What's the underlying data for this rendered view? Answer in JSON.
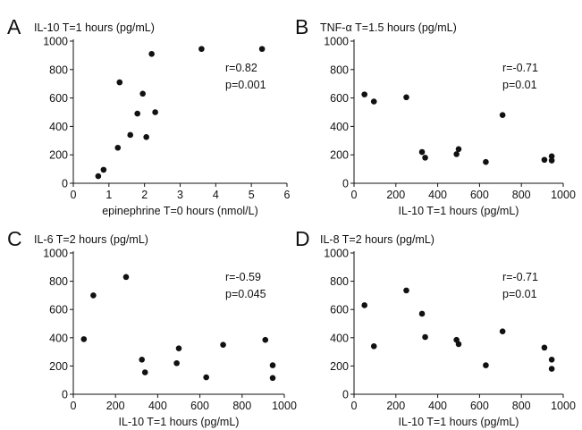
{
  "chart_data": [
    {
      "type": "scatter",
      "panel_letter": "A",
      "title": "IL-10  T=1 hours (pg/mL)",
      "xlabel": "epinephrine T=0 hours  (nmol/L)",
      "ylabel": "",
      "xlim": [
        0,
        6
      ],
      "ylim": [
        0,
        1000
      ],
      "xticks": [
        0,
        1,
        2,
        3,
        4,
        5,
        6
      ],
      "yticks": [
        0,
        200,
        400,
        600,
        800,
        1000
      ],
      "stat_r": "r=0.82",
      "stat_p": "p=0.001",
      "points": [
        {
          "x": 0.7,
          "y": 50
        },
        {
          "x": 0.85,
          "y": 95
        },
        {
          "x": 1.25,
          "y": 250
        },
        {
          "x": 1.3,
          "y": 710
        },
        {
          "x": 1.6,
          "y": 340
        },
        {
          "x": 1.8,
          "y": 490
        },
        {
          "x": 1.95,
          "y": 630
        },
        {
          "x": 2.05,
          "y": 325
        },
        {
          "x": 2.2,
          "y": 910
        },
        {
          "x": 2.3,
          "y": 500
        },
        {
          "x": 3.6,
          "y": 945
        },
        {
          "x": 5.3,
          "y": 945
        }
      ]
    },
    {
      "type": "scatter",
      "panel_letter": "B",
      "title": "TNF-α T=1.5 hours (pg/mL)",
      "xlabel": "IL-10 T=1 hours (pg/mL)",
      "ylabel": "",
      "xlim": [
        0,
        1000
      ],
      "ylim": [
        0,
        1000
      ],
      "xticks": [
        0,
        200,
        400,
        600,
        800,
        1000
      ],
      "yticks": [
        0,
        200,
        400,
        600,
        800,
        1000
      ],
      "stat_r": "r=-0.71",
      "stat_p": "p=0.01",
      "points": [
        {
          "x": 50,
          "y": 625
        },
        {
          "x": 95,
          "y": 575
        },
        {
          "x": 250,
          "y": 605
        },
        {
          "x": 325,
          "y": 220
        },
        {
          "x": 340,
          "y": 180
        },
        {
          "x": 490,
          "y": 205
        },
        {
          "x": 500,
          "y": 240
        },
        {
          "x": 630,
          "y": 150
        },
        {
          "x": 710,
          "y": 480
        },
        {
          "x": 910,
          "y": 165
        },
        {
          "x": 945,
          "y": 190
        },
        {
          "x": 945,
          "y": 160
        }
      ]
    },
    {
      "type": "scatter",
      "panel_letter": "C",
      "title": "IL-6 T=2 hours (pg/mL)",
      "xlabel": "IL-10 T=1 hours (pg/mL)",
      "ylabel": "",
      "xlim": [
        0,
        1000
      ],
      "ylim": [
        0,
        1000
      ],
      "xticks": [
        0,
        200,
        400,
        600,
        800,
        1000
      ],
      "yticks": [
        0,
        200,
        400,
        600,
        800,
        1000
      ],
      "stat_r": "r=-0.59",
      "stat_p": "p=0.045",
      "points": [
        {
          "x": 50,
          "y": 390
        },
        {
          "x": 95,
          "y": 700
        },
        {
          "x": 250,
          "y": 830
        },
        {
          "x": 325,
          "y": 245
        },
        {
          "x": 340,
          "y": 155
        },
        {
          "x": 490,
          "y": 220
        },
        {
          "x": 500,
          "y": 325
        },
        {
          "x": 630,
          "y": 120
        },
        {
          "x": 710,
          "y": 350
        },
        {
          "x": 910,
          "y": 385
        },
        {
          "x": 945,
          "y": 205
        },
        {
          "x": 945,
          "y": 115
        }
      ]
    },
    {
      "type": "scatter",
      "panel_letter": "D",
      "title": "IL-8 T=2 hours (pg/mL)",
      "xlabel": "IL-10 T=1 hours (pg/mL)",
      "ylabel": "",
      "xlim": [
        0,
        1000
      ],
      "ylim": [
        0,
        1000
      ],
      "xticks": [
        0,
        200,
        400,
        600,
        800,
        1000
      ],
      "yticks": [
        0,
        200,
        400,
        600,
        800,
        1000
      ],
      "stat_r": "r=-0.71",
      "stat_p": "p=0.01",
      "points": [
        {
          "x": 50,
          "y": 630
        },
        {
          "x": 95,
          "y": 340
        },
        {
          "x": 250,
          "y": 735
        },
        {
          "x": 325,
          "y": 570
        },
        {
          "x": 340,
          "y": 405
        },
        {
          "x": 490,
          "y": 385
        },
        {
          "x": 500,
          "y": 355
        },
        {
          "x": 630,
          "y": 205
        },
        {
          "x": 710,
          "y": 445
        },
        {
          "x": 910,
          "y": 330
        },
        {
          "x": 945,
          "y": 245
        },
        {
          "x": 945,
          "y": 180
        }
      ]
    }
  ]
}
